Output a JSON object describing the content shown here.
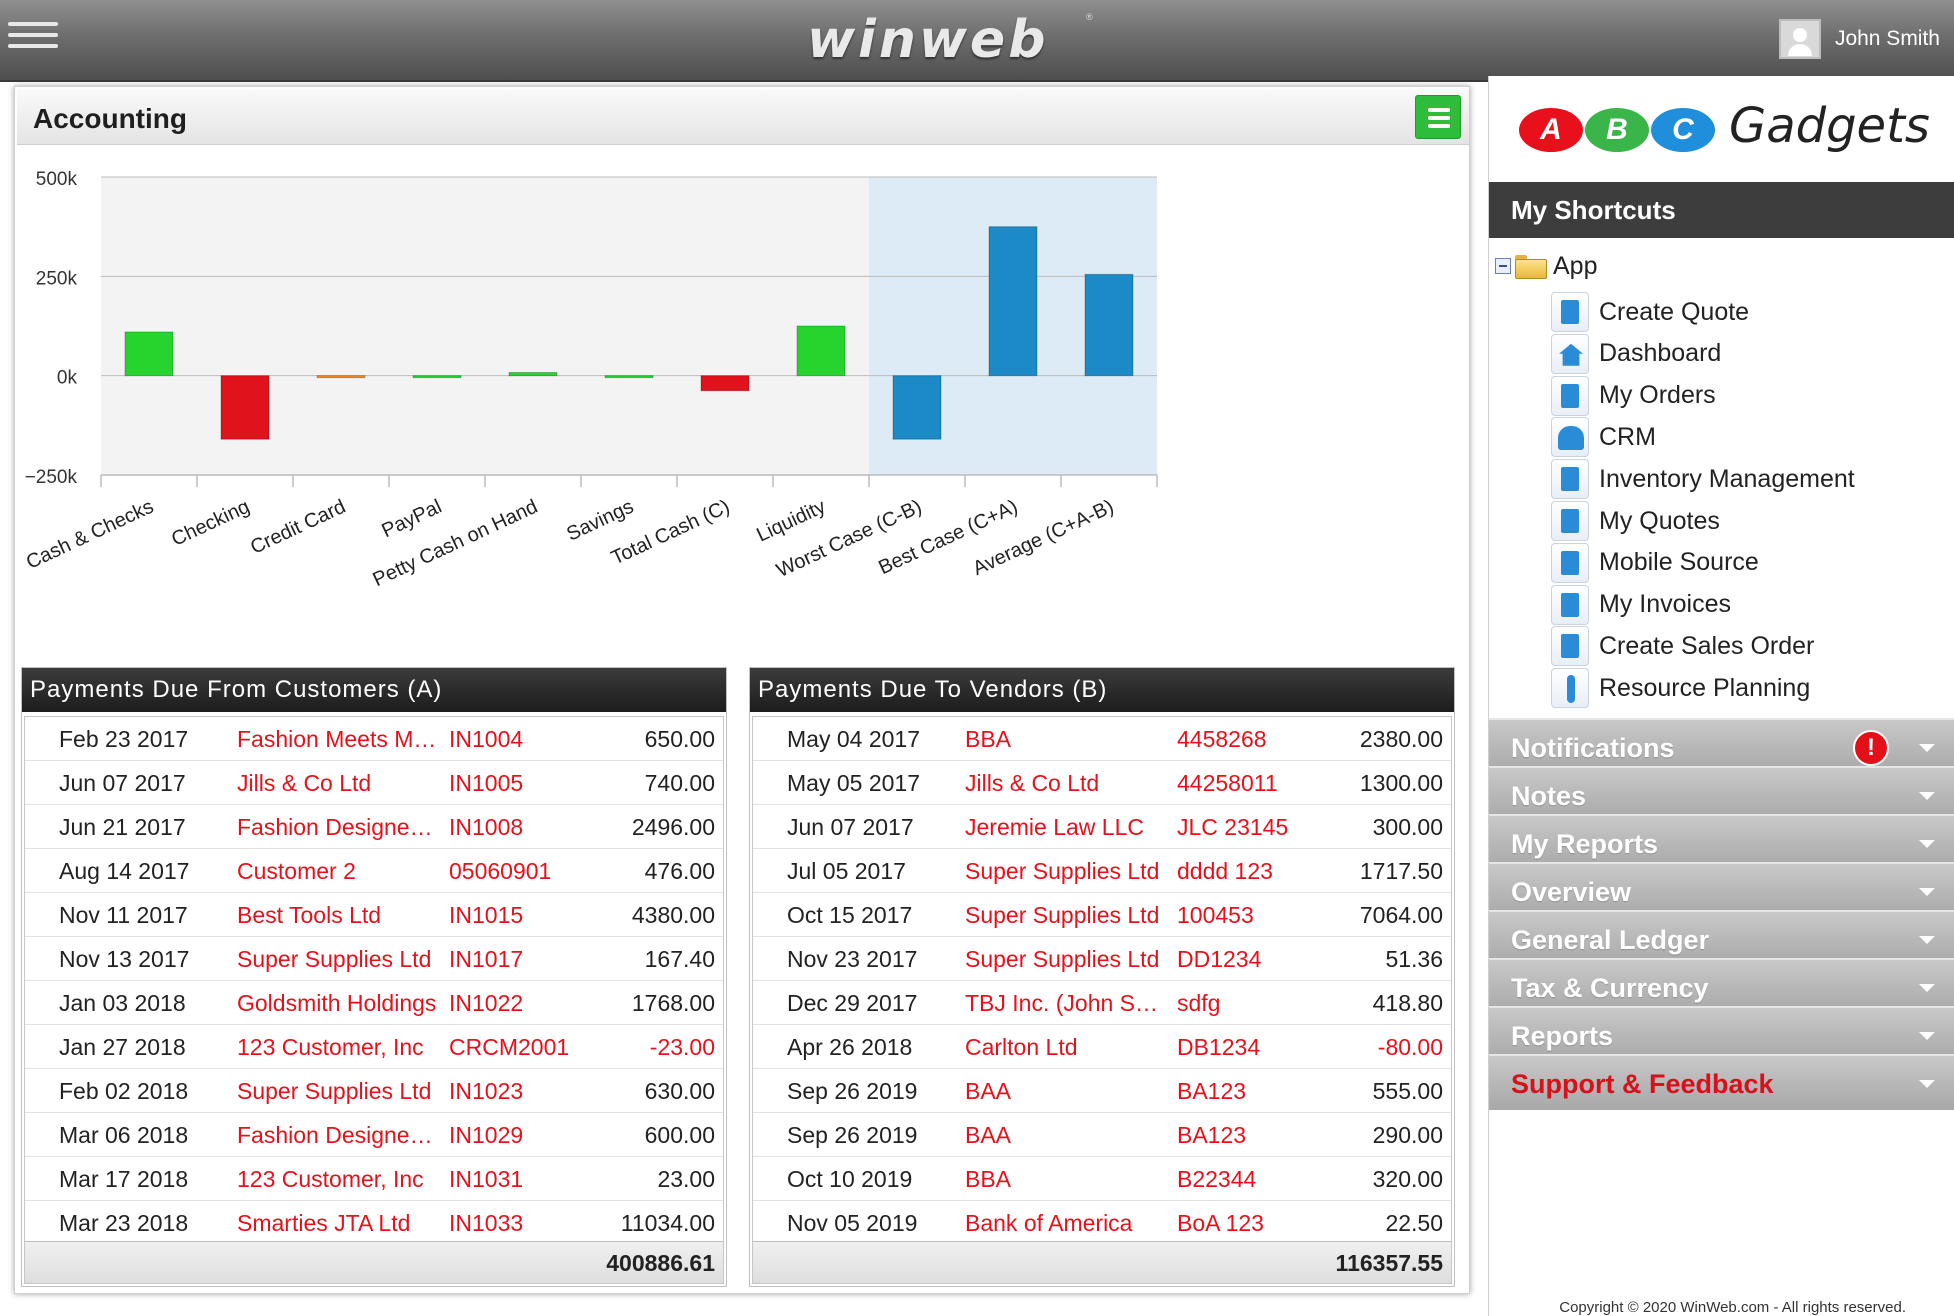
{
  "app": {
    "logo_text": "winweb",
    "user_name": "John Smith"
  },
  "main": {
    "title": "Accounting"
  },
  "chart_data": {
    "type": "bar",
    "categories": [
      "Cash & Checks",
      "Checking",
      "Credit Card",
      "PayPal",
      "Petty Cash on Hand",
      "Savings",
      "Total Cash (C)",
      "Liquidity",
      "Worst Case (C-B)",
      "Best Case (C+A)",
      "Average (C+A-B)"
    ],
    "values": [
      110000,
      -160000,
      -5000,
      0,
      8000,
      0,
      -38000,
      125000,
      -160000,
      375000,
      255000
    ],
    "colors": [
      "#27d42e",
      "#e0121c",
      "#f08a24",
      "#27d42e",
      "#27d42e",
      "#27d42e",
      "#e0121c",
      "#27d42e",
      "#1b8ac6",
      "#1b8ac6",
      "#1b8ac6"
    ],
    "ytick_labels": [
      "500k",
      "250k",
      "0k",
      "−250k"
    ],
    "ytick_values": [
      500000,
      250000,
      0,
      -250000
    ],
    "ylim": [
      -250000,
      500000
    ],
    "highlight_from_index": 8,
    "highlight_color": "#dcebf5",
    "title": "",
    "xlabel": "",
    "ylabel": ""
  },
  "customers_table": {
    "title": "Payments Due From Customers (A)",
    "rows": [
      [
        "Feb 23 2017",
        "Fashion Meets Music",
        "IN1004",
        "650.00"
      ],
      [
        "Jun 07 2017",
        "Jills & Co Ltd",
        "IN1005",
        "740.00"
      ],
      [
        "Jun 21 2017",
        "Fashion Designers Ltd",
        "IN1008",
        "2496.00"
      ],
      [
        "Aug 14 2017",
        "Customer 2",
        "05060901",
        "476.00"
      ],
      [
        "Nov 11 2017",
        "Best Tools Ltd",
        "IN1015",
        "4380.00"
      ],
      [
        "Nov 13 2017",
        "Super Supplies Ltd",
        "IN1017",
        "167.40"
      ],
      [
        "Jan 03 2018",
        "Goldsmith Holdings",
        "IN1022",
        "1768.00"
      ],
      [
        "Jan 27 2018",
        "123 Customer, Inc",
        "CRCM2001",
        "-23.00"
      ],
      [
        "Feb 02 2018",
        "Super Supplies Ltd",
        "IN1023",
        "630.00"
      ],
      [
        "Mar 06 2018",
        "Fashion Designers Ltd",
        "IN1029",
        "600.00"
      ],
      [
        "Mar 17 2018",
        "123 Customer, Inc",
        "IN1031",
        "23.00"
      ],
      [
        "Mar 23 2018",
        "Smarties JTA Ltd",
        "IN1033",
        "11034.00"
      ]
    ],
    "total": "400886.61"
  },
  "vendors_table": {
    "title": "Payments Due To Vendors (B)",
    "rows": [
      [
        "May 04 2017",
        "BBA",
        "4458268",
        "2380.00"
      ],
      [
        "May 05 2017",
        "Jills & Co Ltd",
        "44258011",
        "1300.00"
      ],
      [
        "Jun 07 2017",
        "Jeremie Law LLC",
        "JLC 23145",
        "300.00"
      ],
      [
        "Jul 05 2017",
        "Super Supplies Ltd",
        "dddd 123",
        "1717.50"
      ],
      [
        "Oct 15 2017",
        "Super Supplies Ltd",
        "100453",
        "7064.00"
      ],
      [
        "Nov 23 2017",
        "Super Supplies Ltd",
        "DD1234",
        "51.36"
      ],
      [
        "Dec 29 2017",
        "TBJ Inc. (John Smith)",
        "sdfg",
        "418.80"
      ],
      [
        "Apr 26 2018",
        "Carlton Ltd",
        "DB1234",
        "-80.00"
      ],
      [
        "Sep 26 2019",
        "BAA",
        "BA123",
        "555.00"
      ],
      [
        "Sep 26 2019",
        "BAA",
        "BA123",
        "290.00"
      ],
      [
        "Oct 10 2019",
        "BBA",
        "B22344",
        "320.00"
      ],
      [
        "Nov 05 2019",
        "Bank of America",
        "BoA 123",
        "22.50"
      ]
    ],
    "total": "116357.55"
  },
  "sidebar": {
    "brand": {
      "letters": [
        "A",
        "B",
        "C"
      ],
      "letter_colors": [
        "#e8101a",
        "#3ab54a",
        "#1f8fdc"
      ],
      "text": "Gadgets"
    },
    "shortcuts_title": "My Shortcuts",
    "app_node_label": "App",
    "shortcuts": [
      {
        "label": "Create Quote",
        "icon": "create-quote-icon"
      },
      {
        "label": "Dashboard",
        "icon": "home-icon"
      },
      {
        "label": "My Orders",
        "icon": "clipboard-icon"
      },
      {
        "label": "CRM",
        "icon": "people-icon"
      },
      {
        "label": "Inventory Management",
        "icon": "inventory-icon"
      },
      {
        "label": "My Quotes",
        "icon": "quotes-icon"
      },
      {
        "label": "Mobile Source",
        "icon": "mobile-source-icon"
      },
      {
        "label": "My Invoices",
        "icon": "invoice-icon"
      },
      {
        "label": "Create Sales Order",
        "icon": "sales-order-icon"
      },
      {
        "label": "Resource Planning",
        "icon": "person-icon"
      }
    ],
    "sections": [
      {
        "label": "Notifications",
        "alert": "!"
      },
      {
        "label": "Notes"
      },
      {
        "label": "My Reports"
      },
      {
        "label": "Overview"
      },
      {
        "label": "General Ledger"
      },
      {
        "label": "Tax & Currency"
      },
      {
        "label": "Reports"
      },
      {
        "label": "Support & Feedback"
      }
    ],
    "copyright": "Copyright © 2020 WinWeb.com - All rights reserved."
  }
}
